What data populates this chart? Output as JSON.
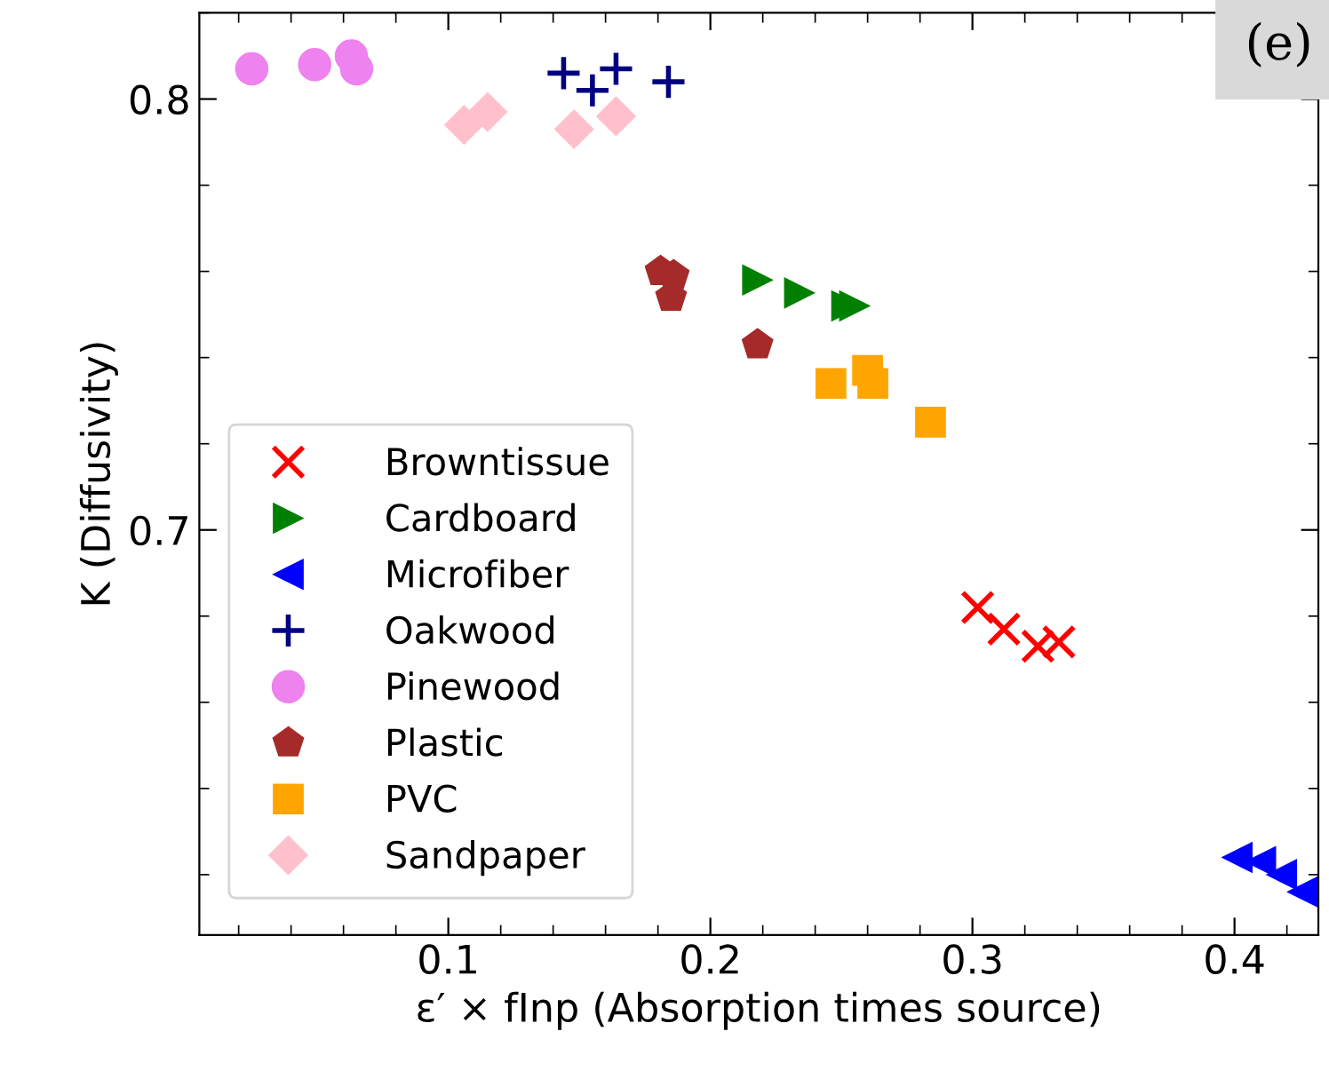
{
  "chart_data": {
    "type": "scatter",
    "xlabel": "ε′ × fInp (Absorption times source)",
    "ylabel": "K (Diffusivity)",
    "annotations": [
      "(e)"
    ],
    "xlim": [
      0.005,
      0.432
    ],
    "ylim": [
      0.606,
      0.82
    ],
    "xticks": [
      0.1,
      0.2,
      0.3,
      0.4
    ],
    "yticks": [
      0.7,
      0.8
    ],
    "grid": false,
    "legend": "lower left",
    "series": [
      {
        "name": "Browntissue",
        "color": "#ff0000",
        "marker": "cross",
        "x": [
          0.302,
          0.312,
          0.325,
          0.333
        ],
        "values": [
          0.682,
          0.677,
          0.673,
          0.674
        ]
      },
      {
        "name": "Cardboard",
        "color": "#008000",
        "marker": "triangle-right",
        "x": [
          0.218,
          0.234,
          0.252,
          0.255
        ],
        "values": [
          0.758,
          0.755,
          0.752,
          0.752
        ]
      },
      {
        "name": "Microfiber",
        "color": "#0000ff",
        "marker": "triangle-left",
        "x": [
          0.401,
          0.41,
          0.418,
          0.426
        ],
        "values": [
          0.624,
          0.623,
          0.62,
          0.616
        ]
      },
      {
        "name": "Oakwood",
        "color": "#000080",
        "marker": "plus",
        "x": [
          0.144,
          0.155,
          0.164,
          0.184
        ],
        "values": [
          0.806,
          0.802,
          0.807,
          0.804
        ]
      },
      {
        "name": "Pinewood",
        "color": "#ee82ee",
        "marker": "circle",
        "x": [
          0.025,
          0.049,
          0.063,
          0.065
        ],
        "values": [
          0.807,
          0.808,
          0.81,
          0.807
        ]
      },
      {
        "name": "Plastic",
        "color": "#a52a2a",
        "x": [
          0.181,
          0.186,
          0.185,
          0.218
        ],
        "values": [
          0.76,
          0.759,
          0.754,
          0.743
        ]
      },
      {
        "name": "PVC",
        "color": "#ffa500",
        "marker": "square",
        "x": [
          0.246,
          0.26,
          0.262,
          0.284
        ],
        "values": [
          0.734,
          0.737,
          0.734,
          0.725
        ]
      },
      {
        "name": "Sandpaper",
        "color": "#ffc0cb",
        "marker": "diamond",
        "x": [
          0.106,
          0.115,
          0.148,
          0.164
        ],
        "values": [
          0.794,
          0.797,
          0.793,
          0.796
        ]
      }
    ]
  }
}
